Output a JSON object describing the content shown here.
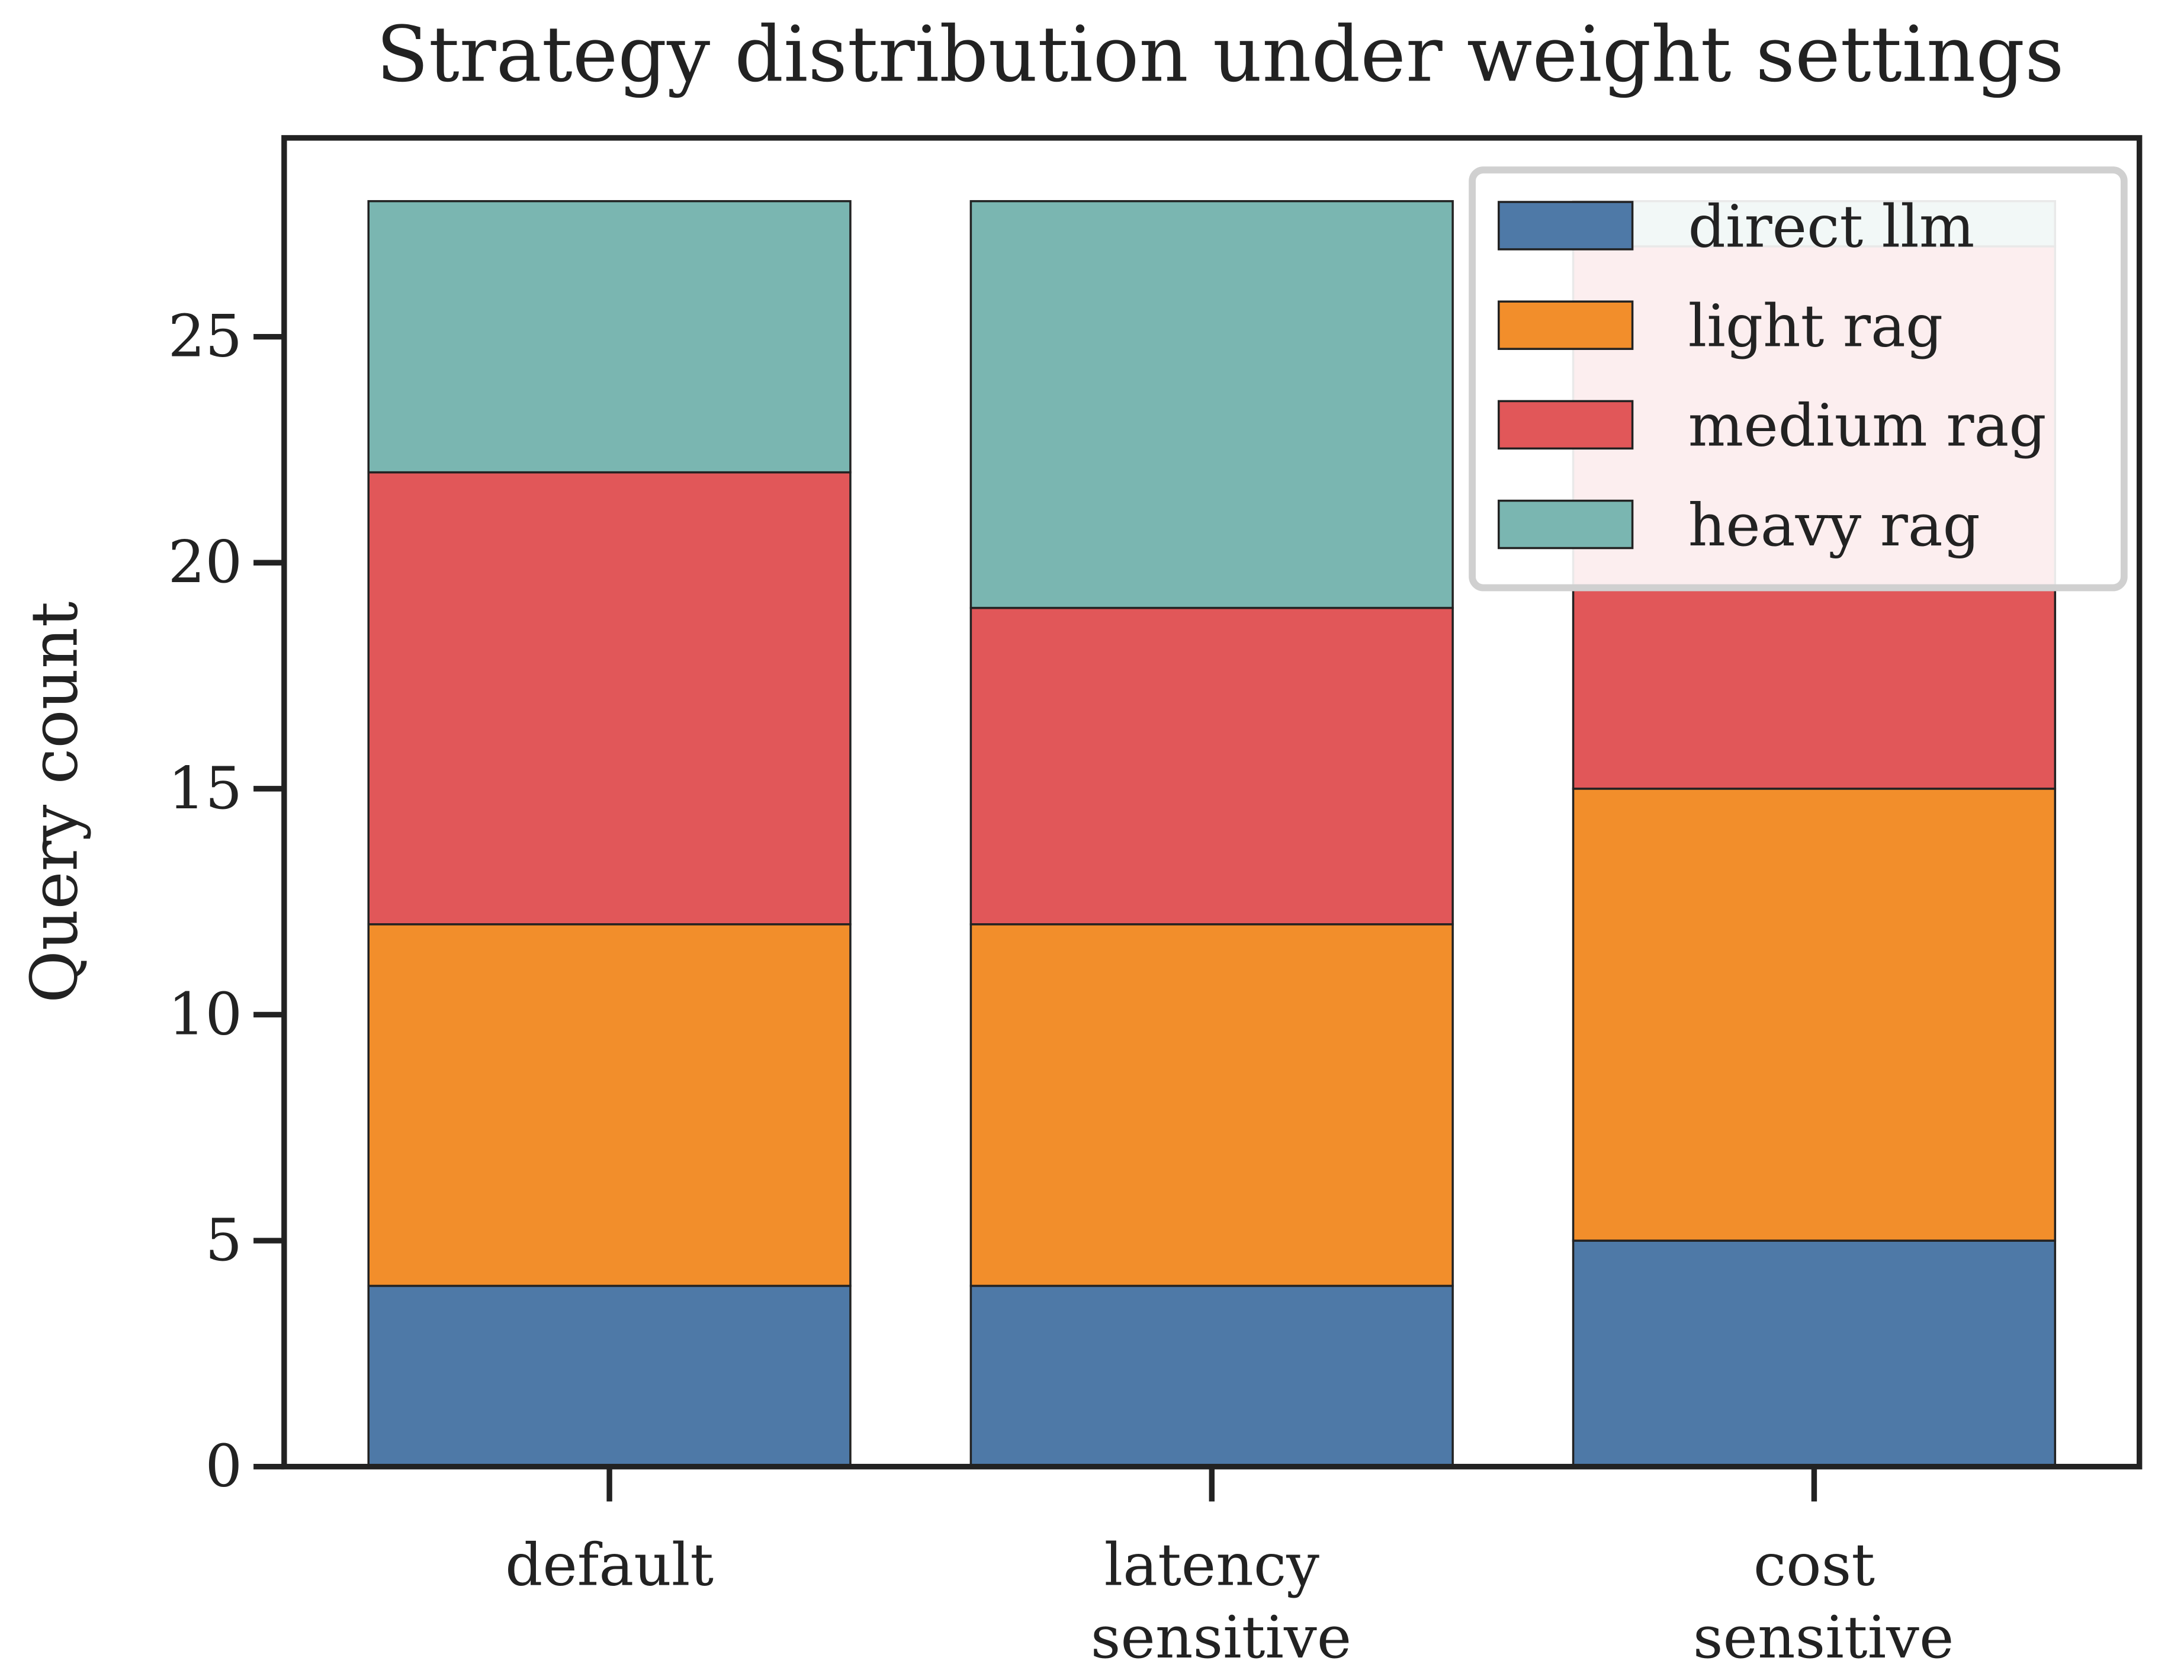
{
  "chart_data": {
    "type": "stacked_bar",
    "title": "Strategy distribution under weight settings",
    "y_label": "Query count",
    "categories": [
      "default",
      "latency sensitive",
      "cost sensitive"
    ],
    "series": [
      {
        "name": "direct llm",
        "color": "#4e79a7",
        "values": [
          4,
          4,
          5
        ]
      },
      {
        "name": "light rag",
        "color": "#f28e2b",
        "values": [
          8,
          8,
          10
        ]
      },
      {
        "name": "medium rag",
        "color": "#e15759",
        "values": [
          10,
          7,
          12
        ]
      },
      {
        "name": "heavy rag",
        "color": "#7ab6b1",
        "values": [
          6,
          9,
          1
        ]
      }
    ],
    "ylim": [
      0,
      29.4
    ],
    "yticks": [
      0,
      5,
      10,
      15,
      20,
      25
    ],
    "legend": "upper right"
  }
}
